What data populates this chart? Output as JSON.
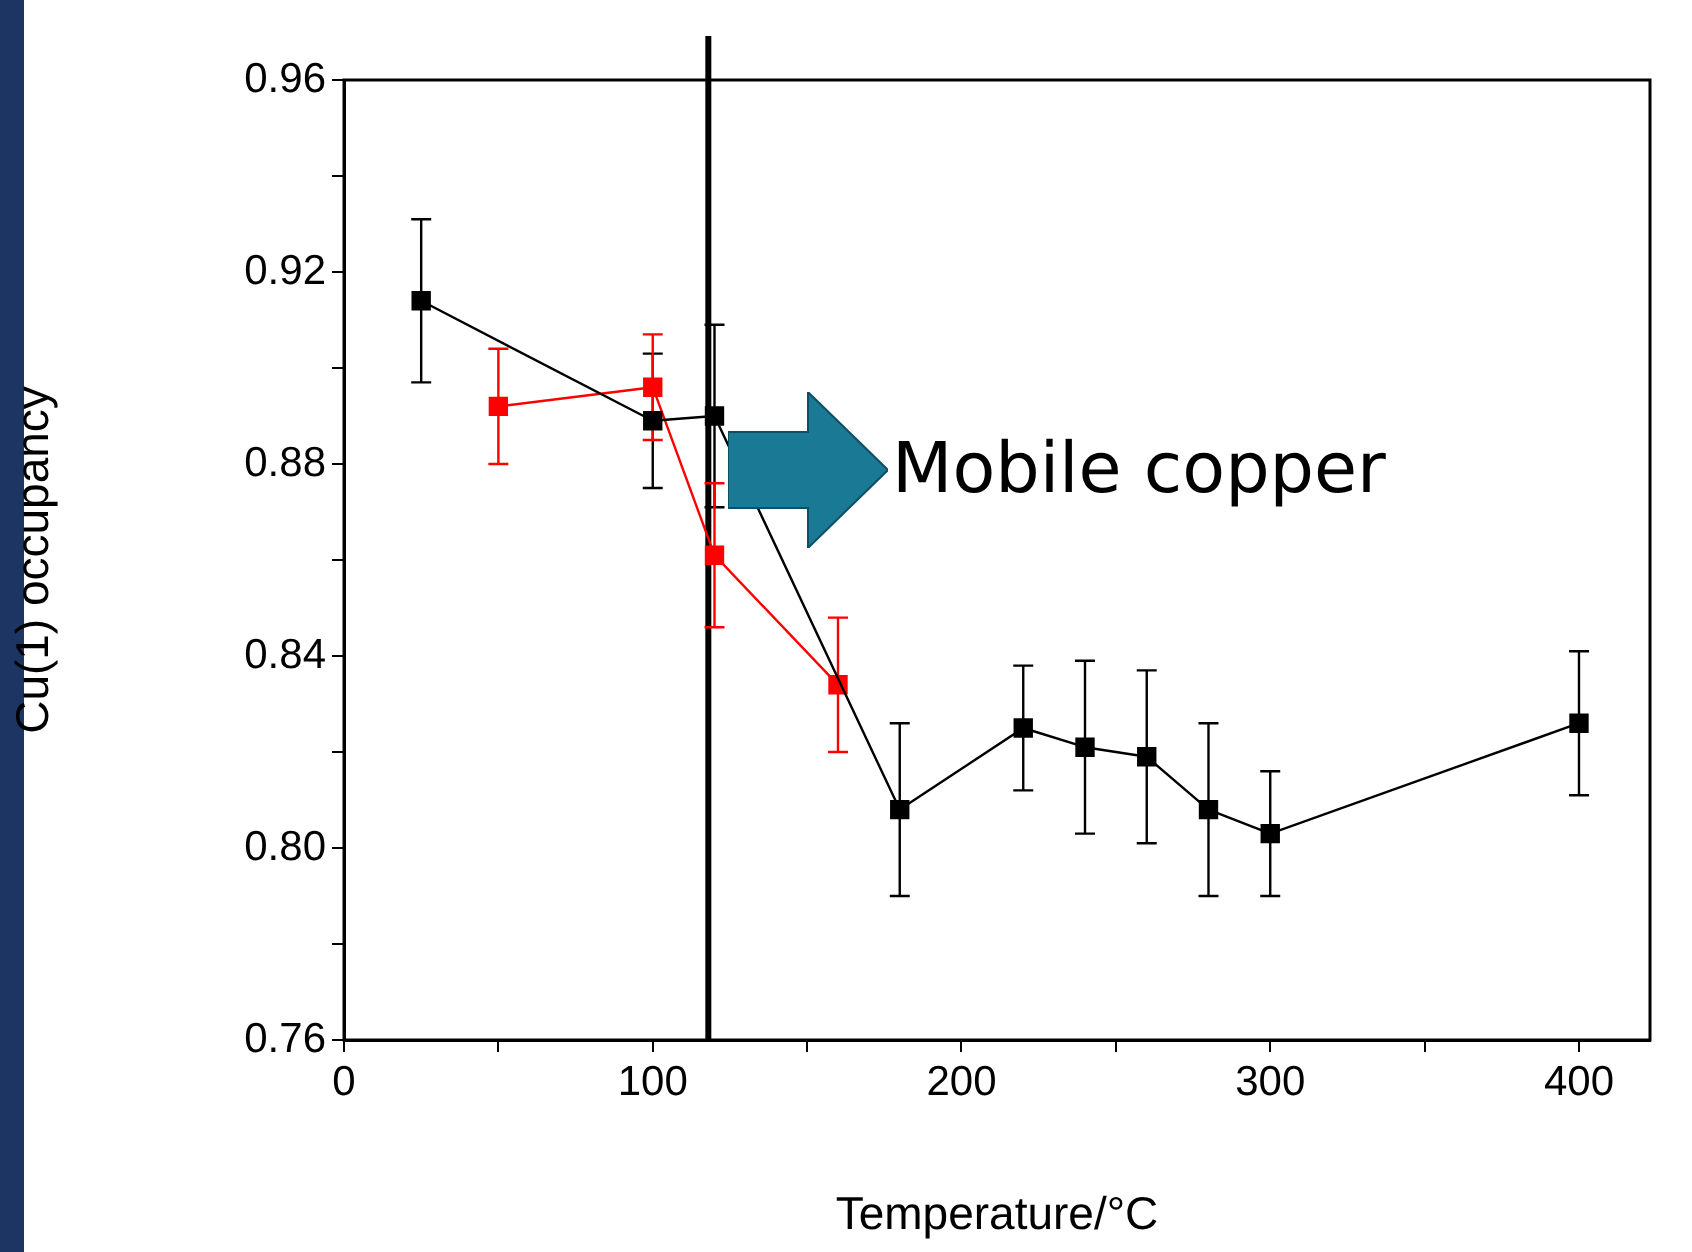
{
  "chart_data": {
    "type": "line",
    "xlabel": "Temperature/°C",
    "ylabel": "Cu(1) occupancy",
    "xlim": [
      0,
      423
    ],
    "ylim": [
      0.76,
      0.96
    ],
    "xticks": [
      0,
      {
        "value": 50,
        "label": null
      },
      100,
      {
        "value": 150,
        "label": null
      },
      200,
      {
        "value": 250,
        "label": null
      },
      300,
      {
        "value": 350,
        "label": null
      },
      400
    ],
    "yticks": [
      0.76,
      {
        "value": 0.78,
        "label": null
      },
      {
        "value": 0.8,
        "label": "0.80"
      },
      {
        "value": 0.82,
        "label": null
      },
      0.84,
      {
        "value": 0.86,
        "label": null
      },
      0.88,
      {
        "value": 0.9,
        "label": null
      },
      0.92,
      {
        "value": 0.94,
        "label": null
      },
      0.96
    ],
    "grid": false,
    "legend": false,
    "marker": "square",
    "line_style": "solid",
    "series": [
      {
        "color": "#000000",
        "x": [
          25,
          100,
          120,
          180,
          220,
          240,
          260,
          280,
          300,
          400
        ],
        "values": [
          0.914,
          0.889,
          0.89,
          0.808,
          0.825,
          0.821,
          0.819,
          0.808,
          0.803,
          0.826
        ],
        "errors": [
          0.017,
          0.014,
          0.019,
          0.018,
          0.013,
          0.018,
          0.018,
          0.018,
          0.013,
          0.015
        ]
      },
      {
        "color": "#ff0000",
        "x": [
          50,
          100,
          120,
          160
        ],
        "values": [
          0.892,
          0.896,
          0.861,
          0.834
        ],
        "errors": [
          0.012,
          0.011,
          0.015,
          0.014
        ]
      }
    ],
    "ref_lines": [
      {
        "axis": "x",
        "value": 118,
        "color": "#000000"
      }
    ],
    "annotations": [
      "Mobile copper"
    ]
  }
}
